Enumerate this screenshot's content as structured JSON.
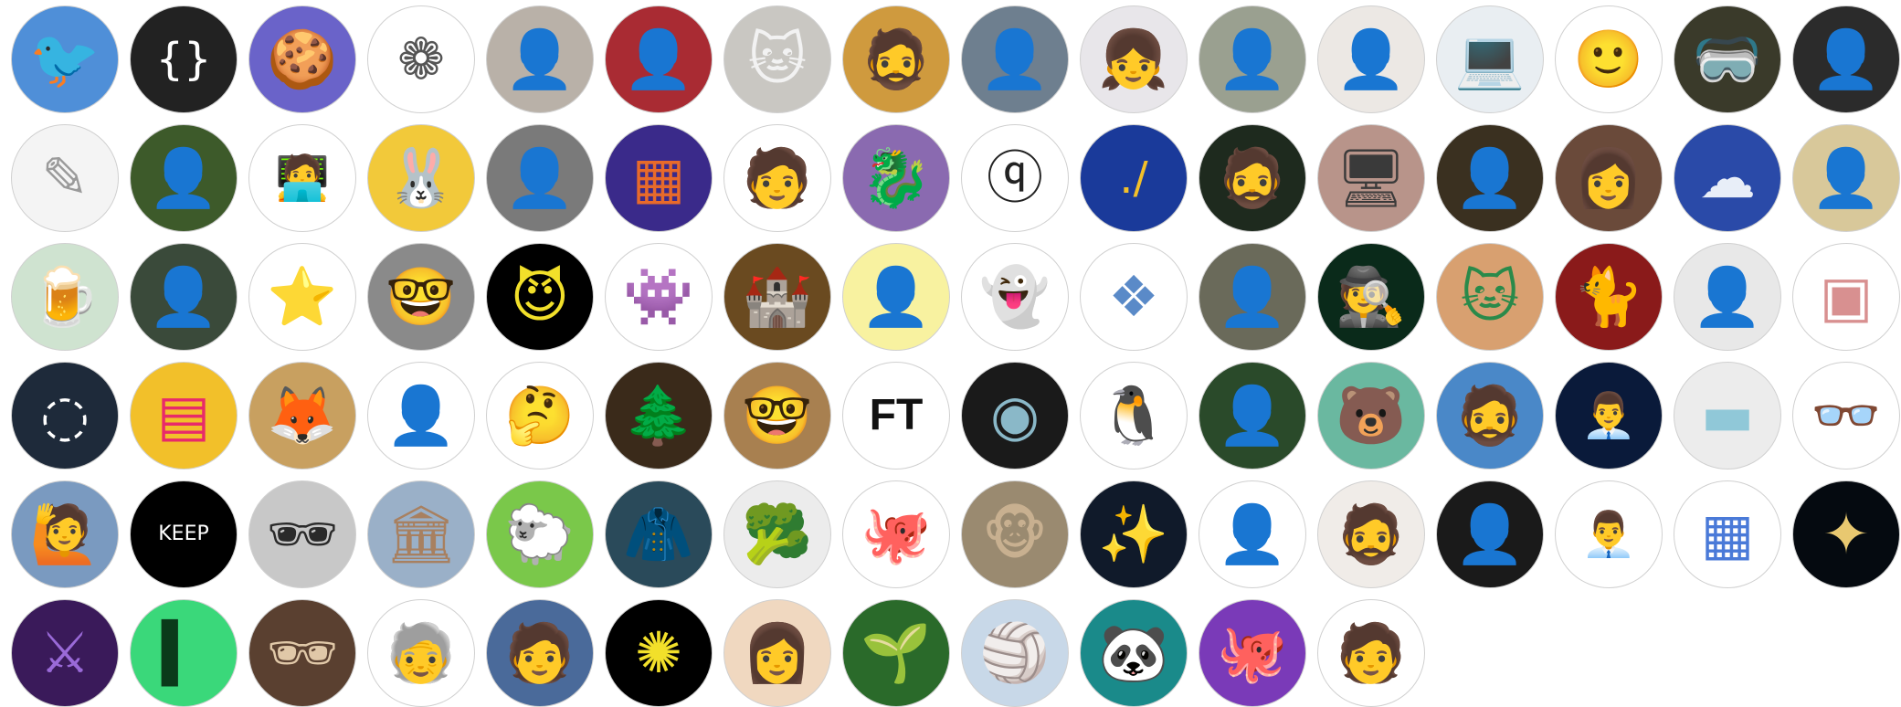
{
  "avatars": [
    {
      "bg": "#4f8fd8",
      "fg": "#f2a23a",
      "glyph": "🐦"
    },
    {
      "bg": "#222222",
      "fg": "#ffffff",
      "glyph": "{}"
    },
    {
      "bg": "#6a63c9",
      "fg": "#2b4fa8",
      "glyph": "🍪"
    },
    {
      "bg": "#ffffff",
      "fg": "#555555",
      "glyph": "❁"
    },
    {
      "bg": "#b9b1a8",
      "fg": "#5a4a3e",
      "glyph": "👤"
    },
    {
      "bg": "#a92b33",
      "fg": "#3a6b52",
      "glyph": "👤"
    },
    {
      "bg": "#c9c7c2",
      "fg": "#f2f2f2",
      "glyph": "🐱"
    },
    {
      "bg": "#cf9a3e",
      "fg": "#4a3320",
      "glyph": "🧔"
    },
    {
      "bg": "#6e7f8f",
      "fg": "#1f2a36",
      "glyph": "👤"
    },
    {
      "bg": "#e8e6ea",
      "fg": "#8f8aa8",
      "glyph": "👧"
    },
    {
      "bg": "#9aa090",
      "fg": "#2b2b2b",
      "glyph": "👤"
    },
    {
      "bg": "#ece8e4",
      "fg": "#b8946c",
      "glyph": "👤"
    },
    {
      "bg": "#e9eef2",
      "fg": "#7da6c9",
      "glyph": "💻"
    },
    {
      "bg": "#ffffff",
      "fg": "#5a3a2a",
      "glyph": "🙂"
    },
    {
      "bg": "#3a3a2a",
      "fg": "#e8d020",
      "glyph": "🥽"
    },
    {
      "bg": "#2b2b2b",
      "fg": "#6e5a4a",
      "glyph": "👤"
    },
    {
      "bg": "#f4f4f4",
      "fg": "#9a9a9a",
      "glyph": "✎"
    },
    {
      "bg": "#3d5a2a",
      "fg": "#c9a88a",
      "glyph": "👤"
    },
    {
      "bg": "#ffffff",
      "fg": "#8a5a3a",
      "glyph": "🧑‍💻"
    },
    {
      "bg": "#f2c93a",
      "fg": "#ffffff",
      "glyph": "🐰"
    },
    {
      "bg": "#7a7a7a",
      "fg": "#2a2a2a",
      "glyph": "👤"
    },
    {
      "bg": "#3a2a8a",
      "fg": "#e86a2a",
      "glyph": "▦"
    },
    {
      "bg": "#ffffff",
      "fg": "#222222",
      "glyph": "🧑"
    },
    {
      "bg": "#8a6ab0",
      "fg": "#e8902a",
      "glyph": "🐉"
    },
    {
      "bg": "#ffffff",
      "fg": "#222222",
      "glyph": "ⓠ"
    },
    {
      "bg": "#1a3a9a",
      "fg": "#f2c02a",
      "glyph": "./"
    },
    {
      "bg": "#1e2a1e",
      "fg": "#b88a6a",
      "glyph": "🧔"
    },
    {
      "bg": "#b8948a",
      "fg": "#3a3a3a",
      "glyph": "🖥"
    },
    {
      "bg": "#3a3020",
      "fg": "#e8e0d0",
      "glyph": "👤"
    },
    {
      "bg": "#6a4a3a",
      "fg": "#f0d8c8",
      "glyph": "👩"
    },
    {
      "bg": "#2a4aa8",
      "fg": "#e8eef8",
      "glyph": "☁"
    },
    {
      "bg": "#d8c89a",
      "fg": "#2a2a3a",
      "glyph": "👤"
    },
    {
      "bg": "#cfe3d0",
      "fg": "#f2a82a",
      "glyph": "🍺"
    },
    {
      "bg": "#3a4a3a",
      "fg": "#c8a890",
      "glyph": "👤"
    },
    {
      "bg": "#ffffff",
      "fg": "#f2a82a",
      "glyph": "⭐"
    },
    {
      "bg": "#8a8a8a",
      "fg": "#6a4a2a",
      "glyph": "🤓"
    },
    {
      "bg": "#000000",
      "fg": "#f2e02a",
      "glyph": "😈"
    },
    {
      "bg": "#ffffff",
      "fg": "#222222",
      "glyph": "👾"
    },
    {
      "bg": "#6a4a20",
      "fg": "#d8a850",
      "glyph": "🏰"
    },
    {
      "bg": "#f8f2a0",
      "fg": "#3a3a3a",
      "glyph": "👤"
    },
    {
      "bg": "#ffffff",
      "fg": "#7ab8d8",
      "glyph": "👻"
    },
    {
      "bg": "#ffffff",
      "fg": "#5a8ac8",
      "glyph": "❖"
    },
    {
      "bg": "#6a6a5a",
      "fg": "#8aa8c8",
      "glyph": "👤"
    },
    {
      "bg": "#0a2a1a",
      "fg": "#2ad86a",
      "glyph": "🕵"
    },
    {
      "bg": "#d8a070",
      "fg": "#2a8a4a",
      "glyph": "🐱"
    },
    {
      "bg": "#8a1a1a",
      "fg": "#c8a880",
      "glyph": "🐈"
    },
    {
      "bg": "#e8e8e8",
      "fg": "#4a4a4a",
      "glyph": "👤"
    },
    {
      "bg": "#ffffff",
      "fg": "#d89090",
      "glyph": "▣"
    },
    {
      "bg": "#1e2a3a",
      "fg": "#ffffff",
      "glyph": "◌"
    },
    {
      "bg": "#f2c02a",
      "fg": "#e82a6a",
      "glyph": "▤"
    },
    {
      "bg": "#c8a060",
      "fg": "#f8e0a0",
      "glyph": "🦊"
    },
    {
      "bg": "#ffffff",
      "fg": "#8a6050",
      "glyph": "👤"
    },
    {
      "bg": "#ffffff",
      "fg": "#222222",
      "glyph": "🤔"
    },
    {
      "bg": "#3a2a1a",
      "fg": "#a86a3a",
      "glyph": "🌲"
    },
    {
      "bg": "#a88050",
      "fg": "#2a2a2a",
      "glyph": "🤓"
    },
    {
      "bg": "#ffffff",
      "fg": "#111111",
      "glyph": "FT"
    },
    {
      "bg": "#1a1a1a",
      "fg": "#8ab8c8",
      "glyph": "◉"
    },
    {
      "bg": "#ffffff",
      "fg": "#111111",
      "glyph": "🐧"
    },
    {
      "bg": "#2a4a2a",
      "fg": "#e8c8a8",
      "glyph": "👤"
    },
    {
      "bg": "#6ab8a0",
      "fg": "#e89080",
      "glyph": "🐻"
    },
    {
      "bg": "#4a88c8",
      "fg": "#1a1a1a",
      "glyph": "🧔"
    },
    {
      "bg": "#0a1a3a",
      "fg": "#e8a890",
      "glyph": "👨‍💼"
    },
    {
      "bg": "#ececec",
      "fg": "#90c8d8",
      "glyph": "▬"
    },
    {
      "bg": "#ffffff",
      "fg": "#111111",
      "glyph": "👓"
    },
    {
      "bg": "#7a9ac0",
      "fg": "#c8a080",
      "glyph": "🙋"
    },
    {
      "bg": "#000000",
      "fg": "#ffffff",
      "glyph": "KEEP"
    },
    {
      "bg": "#c8c8c8",
      "fg": "#2a2a2a",
      "glyph": "🕶"
    },
    {
      "bg": "#9ab0c8",
      "fg": "#a88060",
      "glyph": "🏛"
    },
    {
      "bg": "#7ac84a",
      "fg": "#f2e8d0",
      "glyph": "🐑"
    },
    {
      "bg": "#2a4a5a",
      "fg": "#8aa8b8",
      "glyph": "🧥"
    },
    {
      "bg": "#ececec",
      "fg": "#6ab84a",
      "glyph": "🥦"
    },
    {
      "bg": "#ffffff",
      "fg": "#222222",
      "glyph": "🐙"
    },
    {
      "bg": "#9a8a70",
      "fg": "#c8b090",
      "glyph": "🐵"
    },
    {
      "bg": "#101a2a",
      "fg": "#f2d8a0",
      "glyph": "✨"
    },
    {
      "bg": "#ffffff",
      "fg": "#5a7a9a",
      "glyph": "👤"
    },
    {
      "bg": "#f0ece8",
      "fg": "#8a5a3a",
      "glyph": "🧔"
    },
    {
      "bg": "#1a1a1a",
      "fg": "#d8d8d8",
      "glyph": "👤"
    },
    {
      "bg": "#ffffff",
      "fg": "#2a1a1a",
      "glyph": "👨‍💼"
    },
    {
      "bg": "#ffffff",
      "fg": "#4a7ad8",
      "glyph": "▦"
    },
    {
      "bg": "#050a10",
      "fg": "#e8c870",
      "glyph": "✦"
    },
    {
      "bg": "#3a1a5a",
      "fg": "#9a6ad8",
      "glyph": "⚔"
    },
    {
      "bg": "#3ad87a",
      "fg": "#0a3a1a",
      "glyph": "▍"
    },
    {
      "bg": "#5a4030",
      "fg": "#e0c8a8",
      "glyph": "🕶"
    },
    {
      "bg": "#ffffff",
      "fg": "#3a3a3a",
      "glyph": "🧓"
    },
    {
      "bg": "#4a6a9a",
      "fg": "#f2c090",
      "glyph": "🧑"
    },
    {
      "bg": "#000000",
      "fg": "#f2e02a",
      "glyph": "✺"
    },
    {
      "bg": "#f0d8c0",
      "fg": "#a85a3a",
      "glyph": "👩"
    },
    {
      "bg": "#2a6a2a",
      "fg": "#8ad84a",
      "glyph": "🌱"
    },
    {
      "bg": "#c8d8e8",
      "fg": "#2a3a5a",
      "glyph": "🏐"
    },
    {
      "bg": "#1a8a8a",
      "fg": "#ffffff",
      "glyph": "🐼"
    },
    {
      "bg": "#7a3ab8",
      "fg": "#4ad8a0",
      "glyph": "🐙"
    },
    {
      "bg": "#ffffff",
      "fg": "#222222",
      "glyph": "🧑"
    }
  ]
}
